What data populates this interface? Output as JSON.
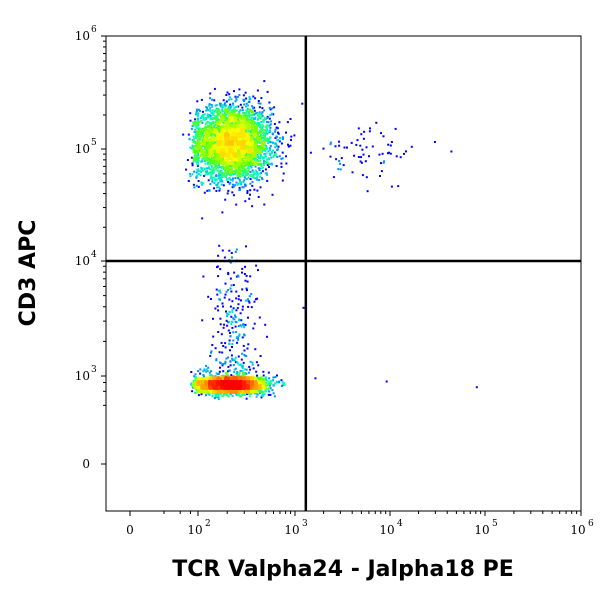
{
  "chart_data": {
    "type": "scatter",
    "style": "flow-cytometry density dot plot",
    "xlabel": "TCR Valpha24 - Jalpha18 PE",
    "ylabel": "CD3 APC",
    "x_scale": "biexponential",
    "y_scale": "biexponential",
    "xlim": [
      -300,
      1000000
    ],
    "ylim": [
      -1000,
      1000000
    ],
    "x_ticks": [
      {
        "value": 0,
        "base": "0",
        "exp": ""
      },
      {
        "value": 100,
        "base": "10",
        "exp": "2"
      },
      {
        "value": 1000,
        "base": "10",
        "exp": "3"
      },
      {
        "value": 10000,
        "base": "10",
        "exp": "4"
      },
      {
        "value": 100000,
        "base": "10",
        "exp": "5"
      },
      {
        "value": 1000000,
        "base": "10",
        "exp": "6"
      }
    ],
    "y_ticks": [
      {
        "value": 0,
        "base": "0",
        "exp": ""
      },
      {
        "value": 1000,
        "base": "10",
        "exp": "3"
      },
      {
        "value": 10000,
        "base": "10",
        "exp": "4"
      },
      {
        "value": 100000,
        "base": "10",
        "exp": "5"
      },
      {
        "value": 1000000,
        "base": "10",
        "exp": "6"
      }
    ],
    "quadrant_gates": {
      "x": 1300,
      "y": 10000
    },
    "populations": [
      {
        "x_center": 220,
        "y_center": 115000,
        "x_spread_log": 0.2,
        "y_spread_log": 0.16,
        "points": 3800,
        "density": "high"
      },
      {
        "x_center": 210,
        "y_center": 550,
        "x_spread_log": 0.17,
        "y_spread_log": 0.14,
        "points": 3800,
        "density": "high"
      },
      {
        "x_center": 6000,
        "y_center": 95000,
        "x_spread_log": 0.28,
        "y_spread_log": 0.12,
        "points": 70,
        "density": "sparse"
      },
      {
        "x_center": 230,
        "y_center": 3000,
        "x_spread_log": 0.12,
        "y_spread_log": 0.35,
        "points": 220,
        "density": "sparse"
      }
    ],
    "outliers": [
      {
        "x": 1200,
        "y": 4000
      },
      {
        "x": 1600,
        "y": 900
      },
      {
        "x": 9000,
        "y": 700
      },
      {
        "x": 80000,
        "y": 450
      }
    ],
    "colormap": [
      "#0000ff",
      "#00a0ff",
      "#00ffc0",
      "#60ff00",
      "#ffff00",
      "#ff8000",
      "#ff0000"
    ],
    "grid": false,
    "legend": "none"
  }
}
